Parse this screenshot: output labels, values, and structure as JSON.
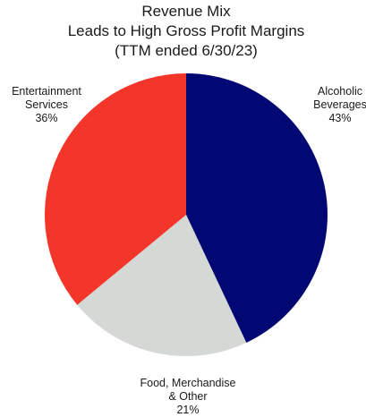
{
  "chart_data": {
    "type": "pie",
    "title_lines": [
      "Revenue Mix",
      "Leads to High Gross Profit Margins",
      "(TTM ended 6/30/23)"
    ],
    "slices": [
      {
        "label_lines": [
          "Alcoholic",
          "Beverages"
        ],
        "pct_label": "43%",
        "value": 43,
        "color": "#020873"
      },
      {
        "label_lines": [
          "Food, Merchandise",
          "& Other"
        ],
        "pct_label": "21%",
        "value": 21,
        "color": "#d4d9d6"
      },
      {
        "label_lines": [
          "Entertainment",
          "Services"
        ],
        "pct_label": "36%",
        "value": 36,
        "color": "#f4352a"
      }
    ],
    "start_angle": "12 o'clock",
    "direction": "clockwise",
    "legend": "none"
  }
}
